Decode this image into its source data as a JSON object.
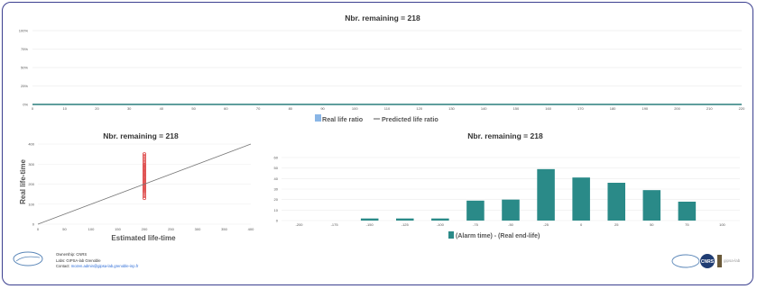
{
  "chart_data": [
    {
      "type": "line",
      "title": "Nbr. remaining = 218",
      "x_ticks": [
        "0",
        "10",
        "20",
        "30",
        "40",
        "50",
        "60",
        "70",
        "80",
        "90",
        "100",
        "110",
        "120",
        "130",
        "140",
        "150",
        "160",
        "170",
        "180",
        "190",
        "200",
        "210",
        "220"
      ],
      "y_ticks": [
        "0%",
        "25%",
        "50%",
        "75%",
        "100%"
      ],
      "xlim": [
        0,
        220
      ],
      "ylim": [
        0,
        100
      ],
      "series": [
        {
          "name": "Real life ratio",
          "style": "bar",
          "color": "#8ab6e6",
          "values": []
        },
        {
          "name": "Predicted life ratio",
          "style": "line",
          "color": "#555555",
          "values": []
        }
      ],
      "baseline_color": "#2a7f7d",
      "grid": true,
      "legend_position": "bottom"
    },
    {
      "type": "scatter",
      "title": "Nbr. remaining = 218",
      "xlabel": "Estimated life-time",
      "ylabel": "Real life-time",
      "xlim": [
        0,
        400
      ],
      "ylim": [
        0,
        400
      ],
      "x_ticks": [
        "0",
        "50",
        "100",
        "150",
        "200",
        "250",
        "300",
        "350",
        "400"
      ],
      "y_ticks": [
        "0",
        "100",
        "200",
        "300",
        "400"
      ],
      "reference_line": [
        [
          0,
          0
        ],
        [
          400,
          400
        ]
      ],
      "point_color": "#e05555",
      "points_x": 200,
      "points_y": [
        130,
        140,
        150,
        160,
        165,
        170,
        175,
        180,
        185,
        190,
        195,
        200,
        205,
        210,
        215,
        220,
        225,
        230,
        235,
        240,
        245,
        250,
        255,
        260,
        265,
        270,
        275,
        280,
        285,
        290,
        295,
        300,
        310,
        320,
        330,
        340,
        350
      ]
    },
    {
      "type": "bar",
      "title": "Nbr. remaining = 218",
      "categories": [
        "-200",
        "-175",
        "-150",
        "-125",
        "-100",
        "-75",
        "-50",
        "-25",
        "0",
        "25",
        "50",
        "75",
        "100"
      ],
      "values": [
        0,
        0,
        2,
        2,
        2,
        19,
        20,
        49,
        41,
        36,
        29,
        18,
        0
      ],
      "ylim": [
        0,
        60
      ],
      "y_ticks": [
        "0",
        "10",
        "20",
        "30",
        "40",
        "50",
        "60"
      ],
      "series_name": "(Alarm time) - (Real end-life)",
      "color": "#2a8a88",
      "legend_position": "bottom"
    }
  ],
  "footer": {
    "ownership": "Ownership: CNRS",
    "labs": "Labs: GIPSA-lab Grenoble",
    "contact_prefix": "Contact: ",
    "contact_email": "mozen.admin@gipsa-lab.grenoble-inp.fr",
    "right_logo_text": "gipsa-lab"
  }
}
